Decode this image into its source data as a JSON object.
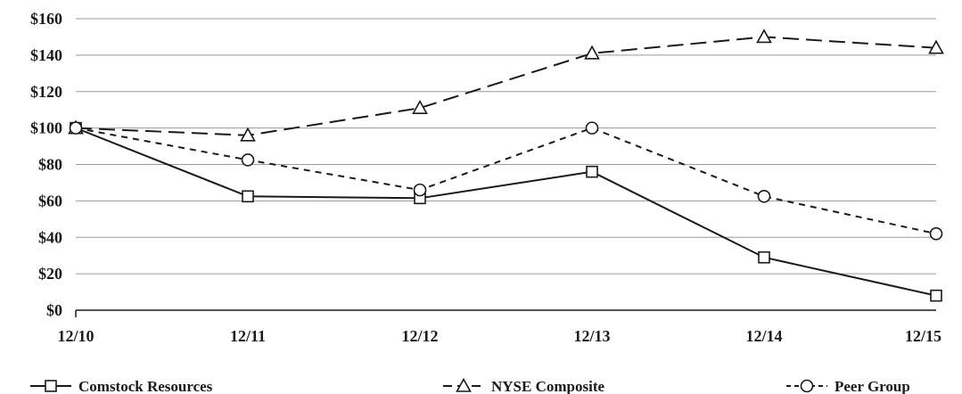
{
  "chart_data": {
    "type": "line",
    "title": "",
    "xlabel": "",
    "ylabel": "",
    "categories": [
      "12/10",
      "12/11",
      "12/12",
      "12/13",
      "12/14",
      "12/15"
    ],
    "ylim": [
      0,
      160
    ],
    "y_ticks": [
      "$0",
      "$20",
      "$40",
      "$60",
      "$80",
      "$100",
      "$120",
      "$140",
      "$160"
    ],
    "grid": "horizontal",
    "legend_position": "bottom",
    "series": [
      {
        "name": "Comstock Resources",
        "values": [
          100,
          62.5,
          61.5,
          76,
          29,
          8
        ],
        "marker": "square",
        "dash": "solid"
      },
      {
        "name": "NYSE Composite",
        "values": [
          100,
          96,
          111,
          141,
          150,
          144
        ],
        "marker": "triangle",
        "dash": "long-dash"
      },
      {
        "name": "Peer Group",
        "values": [
          100,
          82.5,
          66,
          100,
          62.5,
          42
        ],
        "marker": "circle",
        "dash": "short-dash"
      }
    ],
    "colors": {
      "line": "#1a1a1a",
      "grid": "#9a9a9a",
      "marker_fill": "#ffffff"
    }
  }
}
